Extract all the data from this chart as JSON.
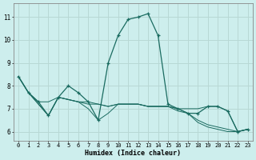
{
  "title": "",
  "xlabel": "Humidex (Indice chaleur)",
  "background_color": "#cdeeed",
  "line_color": "#1a6b60",
  "grid_color": "#b8d8d5",
  "x_values": [
    0,
    1,
    2,
    3,
    4,
    5,
    6,
    7,
    8,
    9,
    10,
    11,
    12,
    13,
    14,
    15,
    16,
    17,
    18,
    19,
    20,
    21,
    22,
    23
  ],
  "main_line": [
    8.4,
    7.7,
    7.3,
    6.7,
    7.5,
    8.0,
    7.7,
    7.3,
    6.5,
    9.0,
    10.2,
    10.9,
    11.0,
    11.15,
    10.2,
    7.2,
    7.0,
    6.8,
    6.8,
    7.1,
    7.1,
    6.9,
    6.0,
    6.1
  ],
  "flat_line1": [
    8.4,
    7.7,
    7.3,
    7.3,
    7.5,
    7.4,
    7.3,
    7.3,
    7.2,
    7.1,
    7.2,
    7.2,
    7.2,
    7.1,
    7.1,
    7.1,
    7.0,
    7.0,
    7.0,
    7.1,
    7.1,
    6.9,
    6.0,
    6.1
  ],
  "flat_line2": [
    8.4,
    7.7,
    7.2,
    6.7,
    7.5,
    7.4,
    7.3,
    7.0,
    6.5,
    6.8,
    7.2,
    7.2,
    7.2,
    7.1,
    7.1,
    7.1,
    6.9,
    6.8,
    6.5,
    6.3,
    6.2,
    6.1,
    6.0,
    6.1
  ],
  "flat_line3": [
    8.4,
    7.7,
    7.2,
    6.7,
    7.5,
    7.4,
    7.3,
    7.2,
    7.2,
    7.1,
    7.2,
    7.2,
    7.2,
    7.1,
    7.1,
    7.1,
    7.0,
    6.8,
    6.4,
    6.2,
    6.1,
    6.0,
    6.0,
    6.1
  ],
  "ylim": [
    5.6,
    11.6
  ],
  "yticks": [
    6,
    7,
    8,
    9,
    10,
    11
  ],
  "xlim": [
    -0.5,
    23.5
  ],
  "xticks": [
    0,
    1,
    2,
    3,
    4,
    5,
    6,
    7,
    8,
    9,
    10,
    11,
    12,
    13,
    14,
    15,
    16,
    17,
    18,
    19,
    20,
    21,
    22,
    23
  ]
}
